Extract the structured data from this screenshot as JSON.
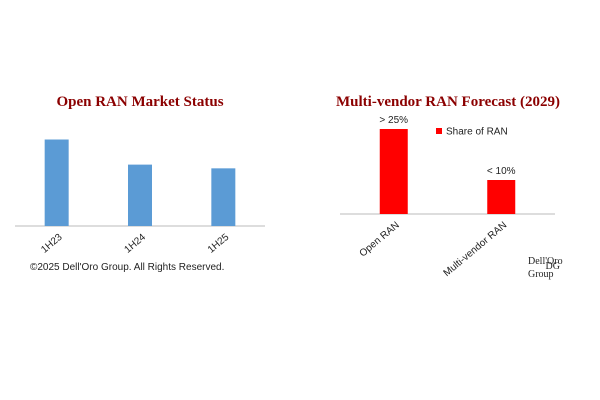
{
  "chart_data": [
    {
      "type": "bar",
      "title": "Open RAN Market Status",
      "categories": [
        "1H23",
        "1H24",
        "1H25"
      ],
      "values": [
        93,
        66,
        62
      ],
      "color": "#5b9bd5",
      "ylim": [
        0,
        100
      ],
      "note": "©2025 Dell'Oro Group. All Rights Reserved."
    },
    {
      "type": "bar",
      "title": "Multi-vendor RAN Forecast (2029)",
      "categories": [
        "Open RAN",
        "Multi-vendor RAN"
      ],
      "series": [
        {
          "name": "Share of RAN",
          "color": "#ff0000",
          "values": [
            25,
            10
          ],
          "value_labels": [
            "> 25%",
            "< 10%"
          ]
        }
      ],
      "ylim": [
        0,
        25
      ]
    }
  ],
  "logo": {
    "mark": "DG",
    "name": "Dell'Oro",
    "group": "Group"
  }
}
